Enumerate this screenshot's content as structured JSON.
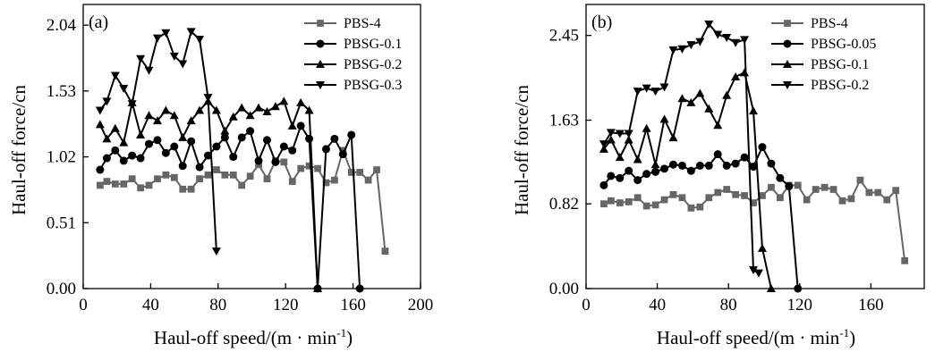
{
  "chart_data": [
    {
      "type": "line",
      "panel": "(a)",
      "xlabel": "Haul-off speed/(m · min",
      "xlabel_sup": "-1",
      "xlabel_end": ")",
      "ylabel": "Haul-off force/cn",
      "xlim": [
        0,
        200
      ],
      "ylim": [
        0,
        2.2
      ],
      "xticks": [
        0,
        40,
        80,
        120,
        160,
        200
      ],
      "yticks": [
        0.0,
        0.51,
        1.02,
        1.53,
        2.04
      ],
      "ytick_labels": [
        "0.00",
        "0.51",
        "1.02",
        "1.53",
        "2.04"
      ],
      "legend_position": "top-right",
      "series": [
        {
          "name": "PBS-4",
          "marker": "square",
          "color": "#666666",
          "x": [
            10,
            14,
            19,
            24,
            29,
            34,
            39,
            44,
            49,
            54,
            59,
            64,
            69,
            74,
            79,
            84,
            89,
            94,
            99,
            104,
            109,
            114,
            119,
            124,
            129,
            134,
            139,
            144,
            149,
            154,
            159,
            164,
            169,
            174,
            179
          ],
          "y": [
            0.8,
            0.83,
            0.81,
            0.81,
            0.85,
            0.78,
            0.8,
            0.85,
            0.88,
            0.86,
            0.77,
            0.77,
            0.85,
            0.88,
            0.92,
            0.88,
            0.88,
            0.8,
            0.87,
            0.96,
            0.85,
            0.99,
            0.98,
            0.83,
            0.93,
            0.95,
            0.93,
            0.82,
            0.84,
            1.07,
            0.9,
            0.9,
            0.84,
            0.92,
            0.29
          ]
        },
        {
          "name": "PBSG-0.1",
          "marker": "circle",
          "color": "#000000",
          "x": [
            10,
            14,
            19,
            24,
            29,
            34,
            39,
            44,
            49,
            54,
            59,
            64,
            69,
            74,
            79,
            84,
            89,
            94,
            99,
            104,
            109,
            114,
            119,
            124,
            129,
            134,
            139,
            144,
            149,
            154,
            159,
            164
          ],
          "y": [
            0.92,
            1.01,
            1.07,
            0.99,
            1.03,
            1.01,
            1.12,
            1.15,
            1.05,
            1.1,
            0.95,
            1.14,
            0.94,
            1.03,
            1.1,
            1.17,
            1.02,
            1.17,
            1.22,
            0.99,
            1.15,
            0.98,
            1.1,
            1.07,
            1.26,
            1.16,
            0.0,
            1.08,
            1.16,
            1.04,
            1.19,
            0.0
          ]
        },
        {
          "name": "PBSG-0.2",
          "marker": "triangle-up",
          "color": "#000000",
          "x": [
            10,
            14,
            19,
            24,
            29,
            34,
            39,
            44,
            49,
            54,
            59,
            64,
            69,
            74,
            79,
            84,
            89,
            94,
            99,
            104,
            109,
            114,
            119,
            124,
            129,
            134,
            139
          ],
          "y": [
            1.27,
            1.16,
            1.24,
            1.13,
            1.44,
            1.19,
            1.34,
            1.3,
            1.38,
            1.34,
            1.17,
            1.3,
            1.38,
            1.45,
            1.38,
            1.22,
            1.33,
            1.4,
            1.34,
            1.4,
            1.37,
            1.41,
            1.45,
            1.26,
            1.44,
            1.38,
            0.0
          ]
        },
        {
          "name": "PBSG-0.3",
          "marker": "triangle-down",
          "color": "#000000",
          "x": [
            10,
            14,
            19,
            24,
            29,
            34,
            39,
            44,
            49,
            54,
            59,
            64,
            69,
            74,
            79
          ],
          "y": [
            1.38,
            1.45,
            1.65,
            1.55,
            1.43,
            1.78,
            1.69,
            1.94,
            1.98,
            1.8,
            1.74,
            1.99,
            1.93,
            1.48,
            0.29
          ]
        }
      ]
    },
    {
      "type": "line",
      "panel": "(b)",
      "xlabel": "Haul-off speed/(m · min",
      "xlabel_sup": "-1",
      "xlabel_end": ")",
      "ylabel": "Haul-off force/cn",
      "xlim": [
        0,
        190
      ],
      "ylim": [
        0,
        2.75
      ],
      "xticks": [
        0,
        40,
        80,
        120,
        160
      ],
      "yticks": [
        0.0,
        0.82,
        1.63,
        2.45
      ],
      "ytick_labels": [
        "0.00",
        "0.82",
        "1.63",
        "2.45"
      ],
      "legend_position": "top-right",
      "series": [
        {
          "name": "PBS-4",
          "marker": "square",
          "color": "#666666",
          "x": [
            10,
            14,
            19,
            24,
            29,
            34,
            39,
            44,
            49,
            54,
            59,
            64,
            69,
            74,
            79,
            84,
            89,
            94,
            99,
            104,
            109,
            114,
            119,
            124,
            129,
            134,
            139,
            144,
            149,
            154,
            159,
            164,
            169,
            174,
            179
          ],
          "y": [
            0.82,
            0.85,
            0.83,
            0.84,
            0.88,
            0.8,
            0.81,
            0.86,
            0.91,
            0.88,
            0.78,
            0.79,
            0.88,
            0.93,
            0.96,
            0.91,
            0.9,
            0.83,
            0.9,
            0.98,
            0.88,
            1.0,
            1.0,
            0.86,
            0.96,
            0.98,
            0.96,
            0.85,
            0.87,
            1.05,
            0.93,
            0.93,
            0.86,
            0.95,
            0.27
          ]
        },
        {
          "name": "PBSG-0.05",
          "marker": "circle",
          "color": "#000000",
          "x": [
            10,
            14,
            19,
            24,
            29,
            34,
            39,
            44,
            49,
            54,
            59,
            64,
            69,
            74,
            79,
            84,
            89,
            94,
            99,
            104,
            109,
            114,
            119
          ],
          "y": [
            1.0,
            1.09,
            1.07,
            1.14,
            1.05,
            1.11,
            1.13,
            1.16,
            1.2,
            1.19,
            1.14,
            1.19,
            1.19,
            1.3,
            1.19,
            1.21,
            1.27,
            1.18,
            1.37,
            1.21,
            1.07,
            0.99,
            0.0
          ]
        },
        {
          "name": "PBSG-0.1",
          "marker": "triangle-up",
          "color": "#000000",
          "x": [
            10,
            14,
            19,
            24,
            29,
            34,
            39,
            44,
            49,
            54,
            59,
            64,
            69,
            74,
            79,
            84,
            89,
            94,
            99,
            104
          ],
          "y": [
            1.35,
            1.44,
            1.27,
            1.44,
            1.25,
            1.55,
            1.2,
            1.64,
            1.46,
            1.84,
            1.8,
            1.89,
            1.74,
            1.58,
            1.87,
            2.05,
            2.09,
            1.72,
            0.39,
            0.0
          ]
        },
        {
          "name": "PBSG-0.2",
          "marker": "triangle-down",
          "color": "#000000",
          "x": [
            10,
            14,
            19,
            24,
            29,
            34,
            39,
            44,
            49,
            54,
            59,
            64,
            69,
            74,
            79,
            84,
            89,
            94,
            97
          ],
          "y": [
            1.4,
            1.51,
            1.5,
            1.5,
            1.91,
            1.94,
            1.91,
            1.95,
            2.31,
            2.32,
            2.36,
            2.39,
            2.56,
            2.46,
            2.43,
            2.38,
            2.41,
            0.18,
            0.15
          ]
        }
      ]
    }
  ]
}
